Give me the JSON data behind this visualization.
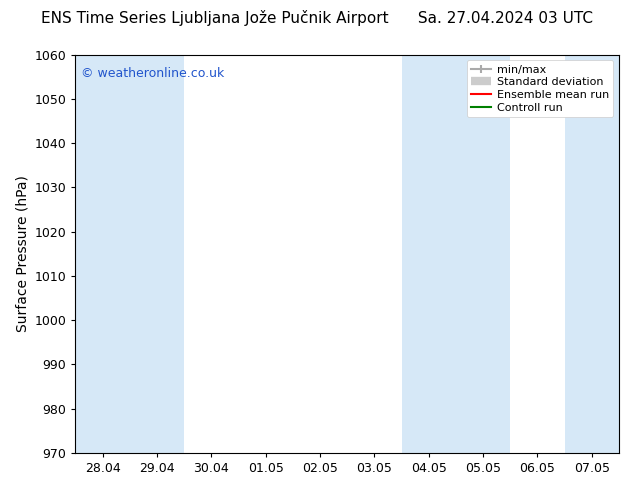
{
  "title_left": "ENS Time Series Ljubljana Jože Pučnik Airport",
  "title_right": "Sa. 27.04.2024 03 UTC",
  "ylabel": "Surface Pressure (hPa)",
  "ylim": [
    970,
    1060
  ],
  "yticks": [
    970,
    980,
    990,
    1000,
    1010,
    1020,
    1030,
    1040,
    1050,
    1060
  ],
  "xtick_labels": [
    "28.04",
    "29.04",
    "30.04",
    "01.05",
    "02.05",
    "03.05",
    "04.05",
    "05.05",
    "06.05",
    "07.05"
  ],
  "shaded_color": "#d6e8f7",
  "watermark": "© weatheronline.co.uk",
  "watermark_color": "#2255cc",
  "legend_entries": [
    {
      "label": "min/max",
      "color": "#aaaaaa",
      "style": "errorbar"
    },
    {
      "label": "Standard deviation",
      "color": "#cccccc",
      "style": "fill"
    },
    {
      "label": "Ensemble mean run",
      "color": "red",
      "style": "line"
    },
    {
      "label": "Controll run",
      "color": "green",
      "style": "line"
    }
  ],
  "bg_color": "#ffffff",
  "plot_bg_color": "#ffffff",
  "title_fontsize": 11,
  "tick_fontsize": 9,
  "ylabel_fontsize": 10,
  "border_color": "#000000"
}
